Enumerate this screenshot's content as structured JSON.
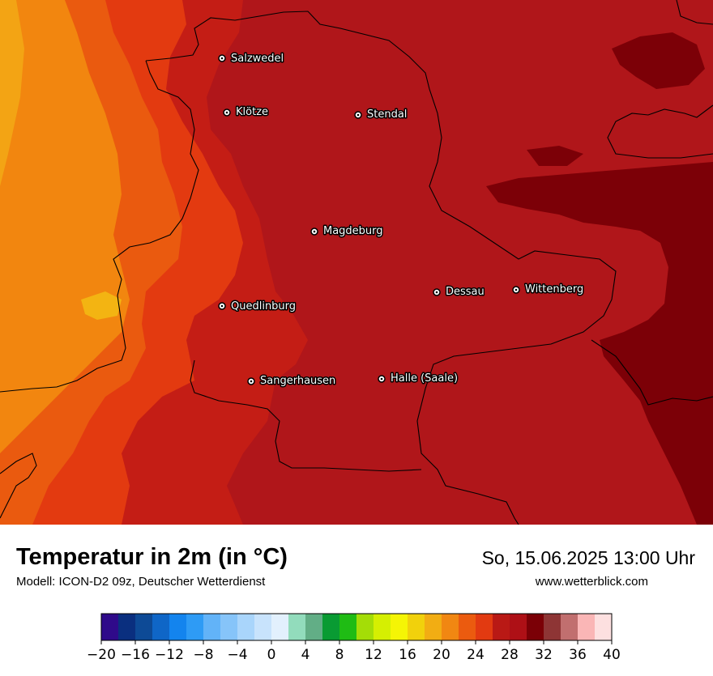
{
  "map": {
    "cities": [
      {
        "name": "Salzwedel"
      },
      {
        "name": "Klötze"
      },
      {
        "name": "Stendal"
      },
      {
        "name": "Magdeburg"
      },
      {
        "name": "Dessau"
      },
      {
        "name": "Wittenberg"
      },
      {
        "name": "Quedlinburg"
      },
      {
        "name": "Sangerhausen"
      },
      {
        "name": "Halle (Saale)"
      }
    ]
  },
  "header": {
    "title": "Temperatur in 2m (in °C)",
    "subtitle": "Modell: ICON-D2 09z, Deutscher Wetterdienst",
    "datetime": "So, 15.06.2025 13:00 Uhr",
    "website": "www.wetterblick.com"
  },
  "legend": {
    "tick_labels": [
      "−20",
      "−16",
      "−12",
      "−8",
      "−4",
      "0",
      "4",
      "8",
      "12",
      "16",
      "20",
      "24",
      "28",
      "32",
      "36",
      "40"
    ],
    "colors": [
      "#2f0a8a",
      "#0a2f7f",
      "#0d4a96",
      "#0f66c7",
      "#1384ee",
      "#2e9bf5",
      "#62b3f8",
      "#86c4f9",
      "#a9d5fb",
      "#c8e3fc",
      "#e2f0fd",
      "#92dcbc",
      "#62ae86",
      "#099b33",
      "#1fbc14",
      "#a4dd07",
      "#d5ef02",
      "#f5f505",
      "#f1d10c",
      "#f2ad13",
      "#f18712",
      "#eb5b0f",
      "#e23a11",
      "#b91915",
      "#ae1016",
      "#7b0006",
      "#8e3535",
      "#c16f6f",
      "#fab6b6",
      "#fde0e0"
    ]
  }
}
